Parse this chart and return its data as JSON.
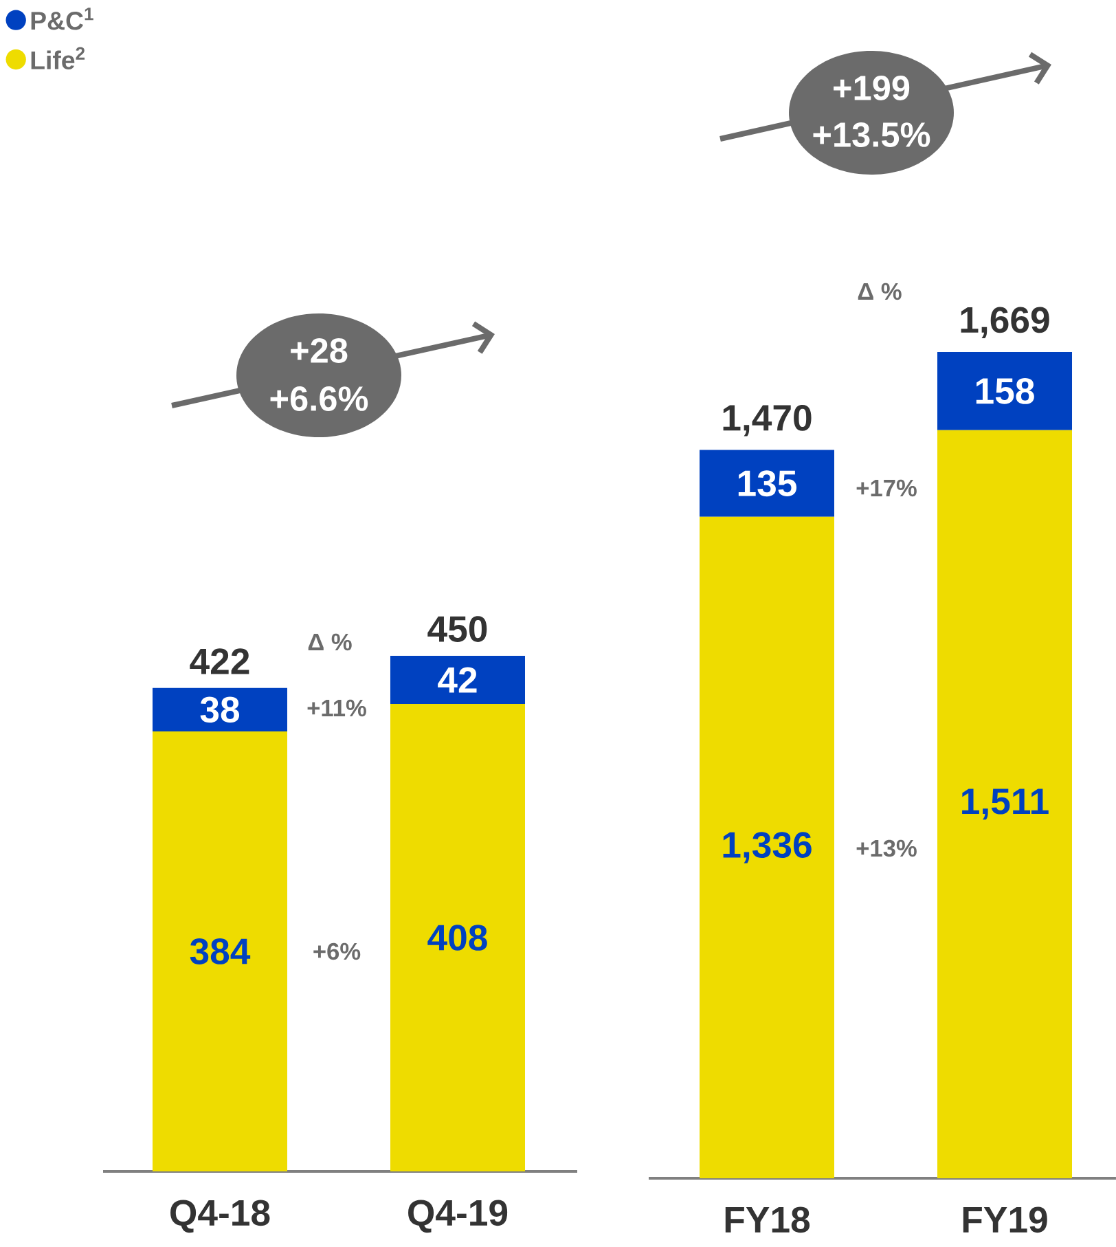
{
  "chart_data": [
    {
      "type": "bar",
      "stacked": true,
      "categories": [
        "Q4-18",
        "Q4-19"
      ],
      "legend": "top left",
      "series": [
        {
          "name": "Life$^{2}$",
          "color": "#eedc00",
          "values": [
            384,
            408
          ],
          "value_labels": [
            "384",
            "408"
          ]
        },
        {
          "name": "P&C$^{1}$",
          "color": "#0041c0",
          "values": [
            38,
            42
          ],
          "value_labels": [
            "38",
            "42"
          ]
        }
      ],
      "totals": [
        "422",
        "450"
      ],
      "annotations": [
        "Δ %",
        "+11%",
        "+6%",
        "+28",
        "+6.6%"
      ]
    },
    {
      "type": "bar",
      "stacked": true,
      "categories": [
        "FY18",
        "FY19"
      ],
      "series": [
        {
          "color": "#eedc00",
          "values": [
            1336,
            1511
          ],
          "value_labels": [
            "1,336",
            "1,511"
          ]
        },
        {
          "color": "#0041c0",
          "values": [
            135,
            158
          ],
          "value_labels": [
            "135",
            "158"
          ]
        }
      ],
      "totals": [
        "1,470",
        "1,669"
      ],
      "annotations": [
        "Δ %",
        "+17%",
        "+13%",
        "+199",
        "+13.5%"
      ]
    }
  ]
}
